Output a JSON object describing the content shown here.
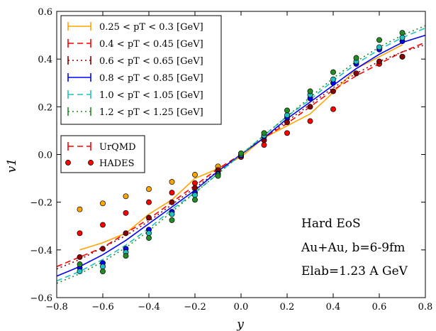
{
  "chart_data": {
    "type": "line",
    "xlabel": "y",
    "ylabel": "v1",
    "xlim": [
      -0.8,
      0.8
    ],
    "ylim": [
      -0.6,
      0.6
    ],
    "xticks": [
      -0.8,
      -0.6,
      -0.4,
      -0.2,
      0.0,
      0.2,
      0.4,
      0.6,
      0.8
    ],
    "yticks": [
      -0.6,
      -0.4,
      -0.2,
      0.0,
      0.2,
      0.4,
      0.6
    ],
    "xtick_labels": [
      "−0.8",
      "−0.6",
      "−0.4",
      "−0.2",
      "0.0",
      "0.2",
      "0.4",
      "0.6",
      "0.8"
    ],
    "ytick_labels": [
      "−0.6",
      "−0.4",
      "−0.2",
      "0.0",
      "0.2",
      "0.4",
      "0.6"
    ],
    "grid": false,
    "legend_position": "top-left",
    "annotations": [
      "Hard EoS",
      "Au+Au, b=6-9fm",
      "Elab=1.23 A GeV"
    ],
    "series": [
      {
        "name": "0.25 < pT < 0.3 [GeV]",
        "kind": "UrQMD",
        "color": "#ffa500",
        "dash": "solid",
        "x": [
          -0.7,
          -0.6,
          -0.5,
          -0.4,
          -0.3,
          -0.2,
          -0.1,
          0.0,
          0.1,
          0.2,
          0.3,
          0.4,
          0.5,
          0.6,
          0.7
        ],
        "y": [
          -0.4,
          -0.37,
          -0.33,
          -0.25,
          -0.19,
          -0.1,
          -0.06,
          -0.01,
          0.07,
          0.12,
          0.17,
          0.26,
          0.36,
          0.41,
          0.46
        ]
      },
      {
        "name": "0.4 < pT < 0.45 [GeV]",
        "kind": "UrQMD",
        "color": "#ff0000",
        "dash": "dashed",
        "x": [
          -0.8,
          -0.7,
          -0.6,
          -0.5,
          -0.4,
          -0.3,
          -0.2,
          -0.1,
          0.0,
          0.1,
          0.2,
          0.3,
          0.4,
          0.5,
          0.6,
          0.7,
          0.8
        ],
        "y": [
          -0.47,
          -0.43,
          -0.39,
          -0.33,
          -0.27,
          -0.2,
          -0.13,
          -0.06,
          0.0,
          0.07,
          0.13,
          0.2,
          0.27,
          0.33,
          0.38,
          0.43,
          0.47
        ]
      },
      {
        "name": "0.6 < pT < 0.65 [GeV]",
        "kind": "UrQMD",
        "color": "#8b0000",
        "dash": "dotted",
        "x": [
          -0.8,
          -0.7,
          -0.6,
          -0.5,
          -0.4,
          -0.3,
          -0.2,
          -0.1,
          0.0,
          0.1,
          0.2,
          0.3,
          0.4,
          0.5,
          0.6,
          0.7,
          0.8
        ],
        "y": [
          -0.48,
          -0.44,
          -0.39,
          -0.34,
          -0.28,
          -0.21,
          -0.14,
          -0.07,
          0.0,
          0.07,
          0.14,
          0.21,
          0.28,
          0.34,
          0.39,
          0.43,
          0.46
        ]
      },
      {
        "name": "0.8 < pT < 0.85 [GeV]",
        "kind": "UrQMD",
        "color": "#0000ff",
        "dash": "solid",
        "x": [
          -0.8,
          -0.7,
          -0.6,
          -0.5,
          -0.4,
          -0.3,
          -0.2,
          -0.1,
          0.0,
          0.1,
          0.2,
          0.3,
          0.4,
          0.5,
          0.6,
          0.7,
          0.8
        ],
        "y": [
          -0.51,
          -0.47,
          -0.42,
          -0.36,
          -0.29,
          -0.22,
          -0.15,
          -0.07,
          0.0,
          0.07,
          0.15,
          0.22,
          0.29,
          0.36,
          0.42,
          0.47,
          0.5
        ]
      },
      {
        "name": "1.0 < pT < 1.05 [GeV]",
        "kind": "UrQMD",
        "color": "#20c0c0",
        "dash": "dashed",
        "x": [
          -0.8,
          -0.7,
          -0.6,
          -0.5,
          -0.4,
          -0.3,
          -0.2,
          -0.1,
          0.0,
          0.1,
          0.2,
          0.3,
          0.4,
          0.5,
          0.6,
          0.7,
          0.8
        ],
        "y": [
          -0.53,
          -0.49,
          -0.44,
          -0.38,
          -0.31,
          -0.23,
          -0.16,
          -0.08,
          0.0,
          0.08,
          0.16,
          0.23,
          0.31,
          0.38,
          0.44,
          0.49,
          0.53
        ]
      },
      {
        "name": "1.2 < pT < 1.25 [GeV]",
        "kind": "UrQMD",
        "color": "#228b22",
        "dash": "dotted",
        "x": [
          -0.8,
          -0.7,
          -0.6,
          -0.5,
          -0.4,
          -0.3,
          -0.2,
          -0.1,
          0.0,
          0.1,
          0.2,
          0.3,
          0.4,
          0.5,
          0.6,
          0.7,
          0.8
        ],
        "y": [
          -0.54,
          -0.5,
          -0.45,
          -0.39,
          -0.32,
          -0.24,
          -0.16,
          -0.08,
          0.0,
          0.08,
          0.16,
          0.24,
          0.32,
          0.39,
          0.45,
          0.5,
          0.54
        ]
      }
    ],
    "hades": [
      {
        "color": "#ffa500",
        "x": [
          -0.7,
          -0.6,
          -0.5,
          -0.4,
          -0.3,
          -0.2,
          -0.1,
          0.0
        ],
        "y": [
          -0.23,
          -0.205,
          -0.175,
          -0.145,
          -0.115,
          -0.085,
          -0.05,
          -0.01
        ]
      },
      {
        "color": "#ff0000",
        "x": [
          -0.7,
          -0.6,
          -0.5,
          -0.4,
          -0.3,
          -0.2,
          -0.1,
          0.0,
          0.1,
          0.2,
          0.3,
          0.4,
          0.5,
          0.6,
          0.7
        ],
        "y": [
          -0.33,
          -0.295,
          -0.245,
          -0.2,
          -0.16,
          -0.12,
          -0.065,
          -0.01,
          0.04,
          0.09,
          0.14,
          0.19,
          0.34,
          0.38,
          0.41
        ]
      },
      {
        "color": "#8b0000",
        "x": [
          -0.7,
          -0.6,
          -0.5,
          -0.4,
          -0.3,
          -0.2,
          -0.1,
          0.0,
          0.1,
          0.2,
          0.3,
          0.4,
          0.5,
          0.6,
          0.7
        ],
        "y": [
          -0.43,
          -0.395,
          -0.33,
          -0.265,
          -0.2,
          -0.14,
          -0.07,
          -0.005,
          0.06,
          0.135,
          0.2,
          0.265,
          0.34,
          0.39,
          0.41
        ]
      },
      {
        "color": "#0000ff",
        "x": [
          -0.7,
          -0.6,
          -0.5,
          -0.4,
          -0.3,
          -0.2,
          -0.1,
          0.0,
          0.1,
          0.2,
          0.3,
          0.4,
          0.5,
          0.6,
          0.7
        ],
        "y": [
          -0.475,
          -0.455,
          -0.395,
          -0.315,
          -0.24,
          -0.16,
          -0.08,
          -0.005,
          0.075,
          0.155,
          0.235,
          0.3,
          0.38,
          0.44,
          0.475
        ]
      },
      {
        "color": "#20c0c0",
        "x": [
          -0.7,
          -0.6,
          -0.5,
          -0.4,
          -0.3,
          -0.2,
          -0.1,
          0.0,
          0.1,
          0.2,
          0.3,
          0.4,
          0.5,
          0.6,
          0.7
        ],
        "y": [
          -0.49,
          -0.47,
          -0.41,
          -0.33,
          -0.25,
          -0.17,
          -0.085,
          0.0,
          0.08,
          0.165,
          0.25,
          0.315,
          0.39,
          0.45,
          0.49
        ]
      },
      {
        "color": "#228b22",
        "x": [
          -0.7,
          -0.6,
          -0.5,
          -0.4,
          -0.3,
          -0.2,
          -0.1,
          0.0,
          0.1,
          0.2,
          0.3,
          0.4,
          0.5,
          0.6,
          0.7
        ],
        "y": [
          -0.46,
          -0.49,
          -0.425,
          -0.35,
          -0.275,
          -0.19,
          -0.09,
          0.005,
          0.09,
          0.185,
          0.265,
          0.345,
          0.405,
          0.48,
          0.51
        ]
      }
    ],
    "legend": {
      "urqmd_label": "UrQMD",
      "hades_label": "HADES"
    }
  }
}
